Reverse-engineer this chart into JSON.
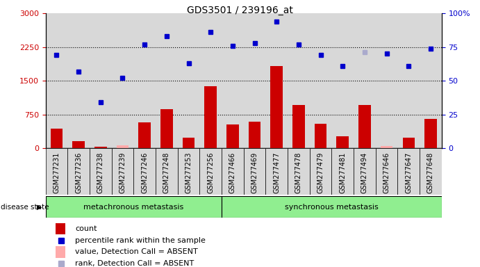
{
  "title": "GDS3501 / 239196_at",
  "samples": [
    "GSM277231",
    "GSM277236",
    "GSM277238",
    "GSM277239",
    "GSM277246",
    "GSM277248",
    "GSM277253",
    "GSM277256",
    "GSM277466",
    "GSM277469",
    "GSM277477",
    "GSM277478",
    "GSM277479",
    "GSM277481",
    "GSM277494",
    "GSM277646",
    "GSM277647",
    "GSM277648"
  ],
  "count_values": [
    430,
    160,
    30,
    70,
    580,
    870,
    230,
    1380,
    530,
    590,
    1820,
    960,
    540,
    270,
    960,
    50,
    230,
    650
  ],
  "rank_pct": [
    69,
    57,
    34,
    52,
    77,
    83,
    63,
    86,
    76,
    78,
    94,
    77,
    69,
    61,
    71,
    70,
    61,
    74
  ],
  "absent_mask": [
    false,
    false,
    false,
    true,
    false,
    false,
    false,
    false,
    false,
    false,
    false,
    false,
    false,
    false,
    false,
    true,
    false,
    false
  ],
  "absent_rank_mask": [
    false,
    false,
    false,
    false,
    false,
    false,
    false,
    false,
    false,
    false,
    false,
    false,
    false,
    false,
    true,
    false,
    false,
    false
  ],
  "group1_label": "metachronous metastasis",
  "group2_label": "synchronous metastasis",
  "group1_count": 8,
  "group2_count": 10,
  "left_ylim": [
    0,
    3000
  ],
  "right_ylim": [
    0,
    100
  ],
  "left_yticks": [
    0,
    750,
    1500,
    2250,
    3000
  ],
  "right_yticks": [
    0,
    25,
    50,
    75,
    100
  ],
  "bar_color": "#cc0000",
  "absent_bar_color": "#ffaaaa",
  "dot_color": "#0000cc",
  "absent_dot_color": "#aaaacc",
  "col_bg_color": "#d8d8d8",
  "plot_bg": "#ffffff",
  "group_bg": "#90ee90",
  "legend_items": [
    "count",
    "percentile rank within the sample",
    "value, Detection Call = ABSENT",
    "rank, Detection Call = ABSENT"
  ]
}
